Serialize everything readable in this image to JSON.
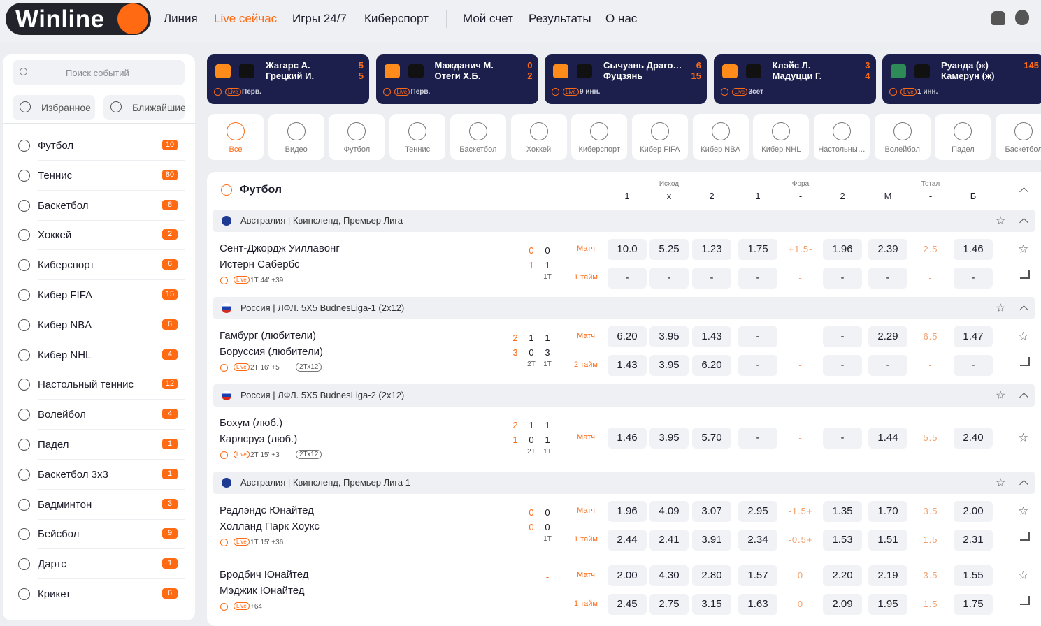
{
  "header": {
    "logo": "Winline",
    "nav": [
      "Линия",
      "Live сейчас",
      "Игры 24/7",
      "Киберспорт",
      "Мой счет",
      "Результаты",
      "О нас"
    ]
  },
  "sidebar": {
    "search": "Поиск событий",
    "buttons": [
      "Избранное",
      "Ближайшие"
    ],
    "sports": [
      {
        "name": "Футбол",
        "count": 10
      },
      {
        "name": "Теннис",
        "count": 80
      },
      {
        "name": "Баскетбол",
        "count": 8
      },
      {
        "name": "Хоккей",
        "count": 2
      },
      {
        "name": "Киберспорт",
        "count": 6
      },
      {
        "name": "Кибер FIFA",
        "count": 15
      },
      {
        "name": "Кибер NBA",
        "count": 6
      },
      {
        "name": "Кибер NHL",
        "count": 4
      },
      {
        "name": "Настольный теннис",
        "count": 12
      },
      {
        "name": "Волейбол",
        "count": 4
      },
      {
        "name": "Падел",
        "count": 1
      },
      {
        "name": "Баскетбол 3х3",
        "count": 1
      },
      {
        "name": "Бадминтон",
        "count": 3
      },
      {
        "name": "Бейсбол",
        "count": 9
      },
      {
        "name": "Дартс",
        "count": 1
      },
      {
        "name": "Крикет",
        "count": 6
      }
    ]
  },
  "live_label": "Live",
  "live_cards": [
    {
      "team1": "Жагарс А.",
      "team2": "Грецкий И.",
      "score1": 5,
      "score2": 5,
      "status": "Перв."
    },
    {
      "team1": "Мажданич М.",
      "team2": "Отеги Х.Б.",
      "score1": 0,
      "score2": 2,
      "status": "Перв."
    },
    {
      "team1": "Сычуань Драго…",
      "team2": "Фуцзянь",
      "score1": 6,
      "score2": 15,
      "status": "9 инн."
    },
    {
      "team1": "Клэйс Л.",
      "team2": "Мадуцци Г.",
      "score1": 3,
      "score2": 4,
      "status": "3сет"
    },
    {
      "team1": "Руанда (ж)",
      "team2": "Камерун (ж)",
      "score1": 145,
      "status": "1 инн."
    }
  ],
  "tabs": [
    "Все",
    "Видео",
    "Футбол",
    "Теннис",
    "Баскетбол",
    "Хоккей",
    "Киберспорт",
    "Кибер FIFA",
    "Кибер NBA",
    "Кибер NHL",
    "Настольны…",
    "Волейбол",
    "Падел",
    "Баскетбол"
  ],
  "section": {
    "title": "Футбол",
    "groups": [
      {
        "label": "Исход",
        "cols": [
          "1",
          "х",
          "2"
        ]
      },
      {
        "label": "Фора",
        "cols": [
          "1",
          "-",
          "2"
        ]
      },
      {
        "label": "Тотал",
        "cols": [
          "М",
          "-",
          "Б"
        ]
      }
    ]
  },
  "leagues": [
    {
      "name": "Австралия | Квинсленд, Премьер Лига",
      "matches": [
        {
          "team1": "Сент-Джордж Уиллавонг",
          "team2": "Истерн Сабербс",
          "scores": [
            {
              "top": 0,
              "bottom": 1
            },
            {
              "top": 0,
              "bottom": 1,
              "period": "1Т"
            }
          ],
          "time": "1Т 44' +39",
          "rows": [
            {
              "label": "Матч",
              "odds": [
                "10.0",
                "5.25",
                "1.23",
                "1.75",
                "+1.5-",
                "1.96",
                "2.39",
                "2.5",
                "1.46"
              ]
            },
            {
              "label": "1 тайм",
              "odds": [
                "-",
                "-",
                "-",
                "-",
                "-",
                "-",
                "-",
                "-",
                "-"
              ]
            }
          ]
        }
      ]
    },
    {
      "name": "Россия | ЛФЛ. 5Х5 BudnesLiga-1 (2х12)",
      "matches": [
        {
          "team1": "Гамбург (любители)",
          "team2": "Боруссия (любители)",
          "scores": [
            {
              "top": 2,
              "bottom": 3
            },
            {
              "top": 1,
              "bottom": 0,
              "period": "2Т"
            },
            {
              "top": 1,
              "bottom": 3,
              "period": "1Т"
            }
          ],
          "time": "2Т 16' +5",
          "format": "2Тх12",
          "rows": [
            {
              "label": "Матч",
              "odds": [
                "6.20",
                "3.95",
                "1.43",
                "-",
                "-",
                "-",
                "2.29",
                "6.5",
                "1.47"
              ]
            },
            {
              "label": "2 тайм",
              "odds": [
                "1.43",
                "3.95",
                "6.20",
                "-",
                "-",
                "-",
                "-",
                "-",
                "-"
              ]
            }
          ]
        }
      ]
    },
    {
      "name": "Россия | ЛФЛ. 5Х5 BudnesLiga-2 (2х12)",
      "matches": [
        {
          "team1": "Бохум (люб.)",
          "team2": "Карлсруэ (люб.)",
          "scores": [
            {
              "top": 2,
              "bottom": 1
            },
            {
              "top": 1,
              "bottom": 0,
              "period": "2Т"
            },
            {
              "top": 1,
              "bottom": 1,
              "period": "1Т"
            }
          ],
          "time": "2Т 15' +3",
          "format": "2Тх12",
          "rows": [
            {
              "label": "Матч",
              "odds": [
                "1.46",
                "3.95",
                "5.70",
                "-",
                "-",
                "-",
                "1.44",
                "5.5",
                "2.40"
              ]
            }
          ]
        }
      ]
    },
    {
      "name": "Австралия | Квинсленд, Премьер Лига 1",
      "matches": [
        {
          "team1": "Редлэндс Юнайтед",
          "team2": "Холланд Парк Хоукс",
          "scores": [
            {
              "top": 0,
              "bottom": 0
            },
            {
              "top": 0,
              "bottom": 0,
              "period": "1Т"
            }
          ],
          "time": "1Т 15' +36",
          "rows": [
            {
              "label": "Матч",
              "odds": [
                "1.96",
                "4.09",
                "3.07",
                "2.95",
                "-1.5+",
                "1.35",
                "1.70",
                "3.5",
                "2.00"
              ]
            },
            {
              "label": "1 тайм",
              "odds": [
                "2.44",
                "2.41",
                "3.91",
                "2.34",
                "-0.5+",
                "1.53",
                "1.51",
                "1.5",
                "2.31"
              ]
            }
          ]
        },
        {
          "team1": "Бродбич Юнайтед",
          "team2": "Мэджик Юнайтед",
          "scores": [
            {
              "top": "-",
              "bottom": "-"
            }
          ],
          "time": "+64",
          "rows": [
            {
              "label": "Матч",
              "odds": [
                "2.00",
                "4.30",
                "2.80",
                "1.57",
                "0",
                "2.20",
                "2.19",
                "3.5",
                "1.55"
              ]
            },
            {
              "label": "1 тайм",
              "odds": [
                "2.45",
                "2.75",
                "3.15",
                "1.63",
                "0",
                "2.09",
                "1.95",
                "1.5",
                "1.75"
              ]
            }
          ]
        }
      ]
    }
  ]
}
